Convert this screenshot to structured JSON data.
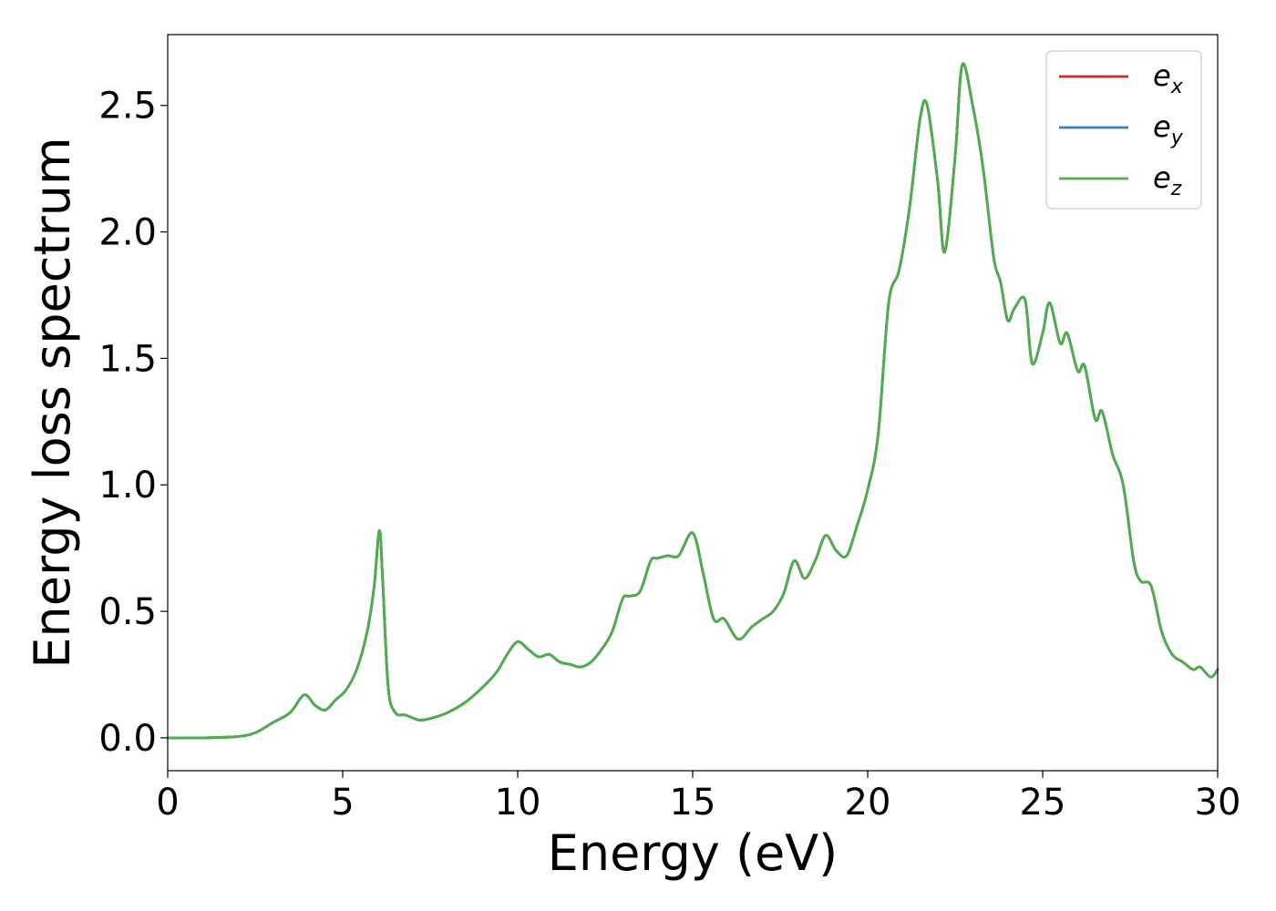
{
  "chart_data": {
    "type": "line",
    "title": "",
    "xlabel": "Energy (eV)",
    "ylabel": "Energy loss spectrum",
    "xlim": [
      0,
      30
    ],
    "ylim": [
      -0.13,
      2.78
    ],
    "xticks": [
      0,
      5,
      10,
      15,
      20,
      25,
      30
    ],
    "xtick_labels": [
      "0",
      "5",
      "10",
      "15",
      "20",
      "25",
      "30"
    ],
    "yticks": [
      0.0,
      0.5,
      1.0,
      1.5,
      2.0,
      2.5
    ],
    "ytick_labels": [
      "0.0",
      "0.5",
      "1.0",
      "1.5",
      "2.0",
      "2.5"
    ],
    "grid": false,
    "legend_position": "top-right",
    "x": [
      0,
      1,
      2,
      2.5,
      3,
      3.5,
      3.9,
      4.2,
      4.5,
      4.8,
      5.1,
      5.4,
      5.7,
      5.9,
      6.05,
      6.15,
      6.3,
      6.5,
      6.8,
      7.2,
      7.6,
      8.0,
      8.5,
      9.0,
      9.4,
      9.7,
      10.0,
      10.3,
      10.6,
      10.9,
      11.2,
      11.5,
      11.8,
      12.1,
      12.4,
      12.7,
      13.0,
      13.2,
      13.5,
      13.8,
      14.0,
      14.3,
      14.6,
      15.0,
      15.3,
      15.6,
      15.9,
      16.3,
      16.7,
      17.0,
      17.3,
      17.6,
      17.9,
      18.2,
      18.5,
      18.8,
      19.1,
      19.4,
      19.7,
      20.0,
      20.3,
      20.6,
      20.9,
      21.2,
      21.5,
      21.7,
      22.0,
      22.2,
      22.5,
      22.7,
      23.0,
      23.3,
      23.6,
      23.8,
      24.0,
      24.2,
      24.5,
      24.7,
      25.0,
      25.2,
      25.5,
      25.7,
      26.0,
      26.2,
      26.5,
      26.7,
      27.0,
      27.3,
      27.6,
      27.8,
      28.1,
      28.4,
      28.7,
      29.0,
      29.3,
      29.5,
      29.8,
      30.0
    ],
    "series": [
      {
        "name": "e_x",
        "legend_base": "e",
        "legend_sub": "x",
        "color": "#d62728",
        "values": [
          0.0,
          0.0,
          0.005,
          0.02,
          0.06,
          0.1,
          0.17,
          0.13,
          0.11,
          0.15,
          0.19,
          0.27,
          0.42,
          0.6,
          0.82,
          0.6,
          0.2,
          0.1,
          0.09,
          0.07,
          0.08,
          0.1,
          0.14,
          0.2,
          0.26,
          0.33,
          0.38,
          0.35,
          0.32,
          0.33,
          0.3,
          0.29,
          0.28,
          0.3,
          0.35,
          0.42,
          0.55,
          0.56,
          0.58,
          0.7,
          0.71,
          0.72,
          0.72,
          0.81,
          0.65,
          0.47,
          0.47,
          0.39,
          0.44,
          0.47,
          0.5,
          0.57,
          0.7,
          0.63,
          0.7,
          0.8,
          0.74,
          0.72,
          0.84,
          0.98,
          1.2,
          1.72,
          1.85,
          2.1,
          2.45,
          2.5,
          2.2,
          1.92,
          2.3,
          2.66,
          2.5,
          2.25,
          1.9,
          1.8,
          1.65,
          1.7,
          1.73,
          1.48,
          1.6,
          1.72,
          1.56,
          1.6,
          1.45,
          1.47,
          1.26,
          1.29,
          1.12,
          1.0,
          0.7,
          0.62,
          0.6,
          0.42,
          0.33,
          0.3,
          0.27,
          0.28,
          0.24,
          0.27
        ]
      },
      {
        "name": "e_y",
        "legend_base": "e",
        "legend_sub": "y",
        "color": "#377eb8",
        "values": [
          0.0,
          0.0,
          0.005,
          0.02,
          0.06,
          0.1,
          0.17,
          0.13,
          0.11,
          0.15,
          0.19,
          0.27,
          0.42,
          0.6,
          0.82,
          0.6,
          0.2,
          0.1,
          0.09,
          0.07,
          0.08,
          0.1,
          0.14,
          0.2,
          0.26,
          0.33,
          0.38,
          0.35,
          0.32,
          0.33,
          0.3,
          0.29,
          0.28,
          0.3,
          0.35,
          0.42,
          0.55,
          0.56,
          0.58,
          0.7,
          0.71,
          0.72,
          0.72,
          0.81,
          0.65,
          0.47,
          0.47,
          0.39,
          0.44,
          0.47,
          0.5,
          0.57,
          0.7,
          0.63,
          0.7,
          0.8,
          0.74,
          0.72,
          0.84,
          0.98,
          1.2,
          1.72,
          1.85,
          2.1,
          2.45,
          2.5,
          2.2,
          1.92,
          2.3,
          2.66,
          2.5,
          2.25,
          1.9,
          1.8,
          1.65,
          1.7,
          1.73,
          1.48,
          1.6,
          1.72,
          1.56,
          1.6,
          1.45,
          1.47,
          1.26,
          1.29,
          1.12,
          1.0,
          0.7,
          0.62,
          0.6,
          0.42,
          0.33,
          0.3,
          0.27,
          0.28,
          0.24,
          0.27
        ]
      },
      {
        "name": "e_z",
        "legend_base": "e",
        "legend_sub": "z",
        "color": "#4daf4a",
        "values": [
          0.0,
          0.0,
          0.005,
          0.02,
          0.06,
          0.1,
          0.17,
          0.13,
          0.11,
          0.15,
          0.19,
          0.27,
          0.42,
          0.6,
          0.82,
          0.6,
          0.2,
          0.1,
          0.09,
          0.07,
          0.08,
          0.1,
          0.14,
          0.2,
          0.26,
          0.33,
          0.38,
          0.35,
          0.32,
          0.33,
          0.3,
          0.29,
          0.28,
          0.3,
          0.35,
          0.42,
          0.55,
          0.56,
          0.58,
          0.7,
          0.71,
          0.72,
          0.72,
          0.81,
          0.65,
          0.47,
          0.47,
          0.39,
          0.44,
          0.47,
          0.5,
          0.57,
          0.7,
          0.63,
          0.7,
          0.8,
          0.74,
          0.72,
          0.84,
          0.98,
          1.2,
          1.72,
          1.85,
          2.1,
          2.45,
          2.5,
          2.2,
          1.92,
          2.3,
          2.66,
          2.5,
          2.25,
          1.9,
          1.8,
          1.65,
          1.7,
          1.73,
          1.48,
          1.6,
          1.72,
          1.56,
          1.6,
          1.45,
          1.47,
          1.26,
          1.29,
          1.12,
          1.0,
          0.7,
          0.62,
          0.6,
          0.42,
          0.33,
          0.3,
          0.27,
          0.28,
          0.24,
          0.27
        ]
      }
    ]
  }
}
